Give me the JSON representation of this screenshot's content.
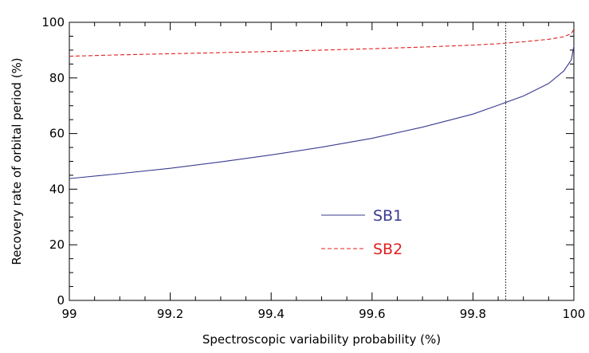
{
  "chart_data": {
    "type": "line",
    "xlabel": "Spectroscopic variability probability (%)",
    "ylabel": "Recovery rate of orbital period (%)",
    "xlim": [
      99,
      100
    ],
    "ylim": [
      0,
      100
    ],
    "x_ticks": [
      "99",
      "99.2",
      "99.4",
      "99.6",
      "99.8",
      "100"
    ],
    "y_ticks": [
      "0",
      "20",
      "40",
      "60",
      "80",
      "100"
    ],
    "grid": false,
    "legend_position": "center",
    "vertical_reference_line": {
      "x": 99.865,
      "style": "dotted",
      "color": "#000000"
    },
    "series": [
      {
        "name": "SB1",
        "color": "#3b3b8f",
        "line_style": "solid",
        "x": [
          99.0,
          99.1,
          99.2,
          99.3,
          99.4,
          99.5,
          99.6,
          99.7,
          99.8,
          99.85,
          99.9,
          99.95,
          99.98,
          99.995,
          100.0
        ],
        "y": [
          43.8,
          45.6,
          47.5,
          49.8,
          52.3,
          55.1,
          58.3,
          62.3,
          67.0,
          70.2,
          73.5,
          78.0,
          82.5,
          86.5,
          91.5
        ]
      },
      {
        "name": "SB2",
        "color": "#e02020",
        "line_style": "dashed",
        "x": [
          99.0,
          99.1,
          99.2,
          99.3,
          99.4,
          99.5,
          99.6,
          99.7,
          99.8,
          99.85,
          99.9,
          99.95,
          99.98,
          99.995,
          100.0
        ],
        "y": [
          87.8,
          88.3,
          88.7,
          89.1,
          89.5,
          90.0,
          90.5,
          91.1,
          91.8,
          92.3,
          93.0,
          93.9,
          94.8,
          96.0,
          97.5
        ]
      }
    ]
  }
}
